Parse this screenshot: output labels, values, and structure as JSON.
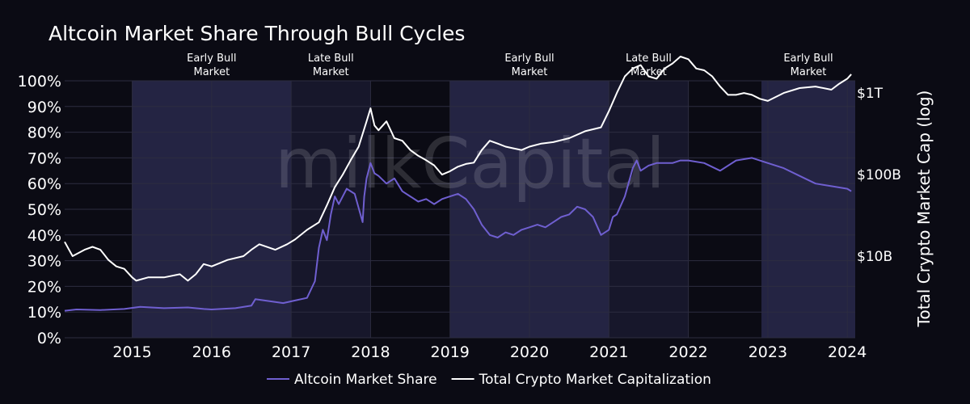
{
  "watermark": "milkCapital",
  "chart_data": {
    "type": "line",
    "title": "Altcoin Market Share Through Bull Cycles",
    "xlabel": "",
    "ylabel": "",
    "y2label": "Total Crypto Market Cap (log)",
    "xlim": [
      2014.15,
      2024.1
    ],
    "ylim": [
      0,
      100
    ],
    "y2lim_log10": [
      9.0,
      12.15
    ],
    "x_ticks": [
      2015,
      2016,
      2017,
      2018,
      2019,
      2020,
      2021,
      2022,
      2023,
      2024
    ],
    "x_tick_labels": [
      "2015",
      "2016",
      "2017",
      "2018",
      "2019",
      "2020",
      "2021",
      "2022",
      "2023",
      "2024"
    ],
    "y_ticks": [
      0,
      10,
      20,
      30,
      40,
      50,
      60,
      70,
      80,
      90,
      100
    ],
    "y_tick_labels": [
      "0%",
      "10%",
      "20%",
      "30%",
      "40%",
      "50%",
      "60%",
      "70%",
      "80%",
      "90%",
      "100%"
    ],
    "y2_ticks": [
      10000000000,
      100000000000,
      1000000000000
    ],
    "y2_tick_labels": [
      "$10B",
      "$100B",
      "$1T"
    ],
    "grid": true,
    "legend_position": "bottom-center",
    "phases": [
      {
        "start": 2015.0,
        "end": 2017.0,
        "label_lines": [
          "Early Bull",
          "Market"
        ],
        "color": "#5a5aa8",
        "opacity": 0.32
      },
      {
        "start": 2017.0,
        "end": 2018.0,
        "label_lines": [
          "Late Bull",
          "Market"
        ],
        "color": "#5a5aa8",
        "opacity": 0.16
      },
      {
        "start": 2019.0,
        "end": 2021.0,
        "label_lines": [
          "Early Bull",
          "Market"
        ],
        "color": "#5a5aa8",
        "opacity": 0.32
      },
      {
        "start": 2021.0,
        "end": 2022.0,
        "label_lines": [
          "Late Bull",
          "Market"
        ],
        "color": "#5a5aa8",
        "opacity": 0.16
      },
      {
        "start": 2022.92,
        "end": 2024.1,
        "label_lines": [
          "Early Bull",
          "Market"
        ],
        "color": "#5a5aa8",
        "opacity": 0.32
      }
    ],
    "series": [
      {
        "name": "Altcoin Market Share",
        "axis": "left",
        "color": "#6f5fd0",
        "x": [
          2014.1,
          2014.3,
          2014.6,
          2014.9,
          2015.1,
          2015.4,
          2015.7,
          2015.9,
          2016.0,
          2016.3,
          2016.5,
          2016.55,
          2016.9,
          2017.05,
          2017.2,
          2017.3,
          2017.35,
          2017.4,
          2017.45,
          2017.5,
          2017.55,
          2017.6,
          2017.7,
          2017.8,
          2017.9,
          2017.92,
          2017.95,
          2018.0,
          2018.05,
          2018.1,
          2018.2,
          2018.3,
          2018.4,
          2018.5,
          2018.6,
          2018.7,
          2018.8,
          2018.9,
          2019.0,
          2019.1,
          2019.2,
          2019.3,
          2019.4,
          2019.5,
          2019.6,
          2019.7,
          2019.8,
          2019.9,
          2020.0,
          2020.1,
          2020.2,
          2020.3,
          2020.4,
          2020.5,
          2020.6,
          2020.7,
          2020.8,
          2020.9,
          2021.0,
          2021.05,
          2021.1,
          2021.2,
          2021.3,
          2021.35,
          2021.4,
          2021.5,
          2021.6,
          2021.7,
          2021.8,
          2021.9,
          2022.0,
          2022.2,
          2022.4,
          2022.6,
          2022.8,
          2023.0,
          2023.2,
          2023.4,
          2023.6,
          2023.8,
          2024.0,
          2024.05
        ],
        "values": [
          10.5,
          11.0,
          10.8,
          11.2,
          12.0,
          11.5,
          11.8,
          11.2,
          11.0,
          11.5,
          12.5,
          15.0,
          13.5,
          14.5,
          15.5,
          22.0,
          35.0,
          42.0,
          38.0,
          48.0,
          55.0,
          52.0,
          58.0,
          56.0,
          45.0,
          55.0,
          62.0,
          68.0,
          64.0,
          63.0,
          60.0,
          62.0,
          57.0,
          55.0,
          53.0,
          54.0,
          52.0,
          54.0,
          55.0,
          56.0,
          54.0,
          50.0,
          44.0,
          40.0,
          39.0,
          41.0,
          40.0,
          42.0,
          43.0,
          44.0,
          43.0,
          45.0,
          47.0,
          48.0,
          51.0,
          50.0,
          47.0,
          40.0,
          42.0,
          47.0,
          48.0,
          55.0,
          66.0,
          69.0,
          65.0,
          67.0,
          68.0,
          68.0,
          68.0,
          69.0,
          69.0,
          68.0,
          65.0,
          69.0,
          70.0,
          68.0,
          66.0,
          63.0,
          60.0,
          59.0,
          58.0,
          57.0
        ]
      },
      {
        "name": "Total Crypto Market Capitalization",
        "axis": "right",
        "color": "#ffffff",
        "x": [
          2014.15,
          2014.25,
          2014.4,
          2014.5,
          2014.6,
          2014.7,
          2014.8,
          2014.9,
          2015.0,
          2015.05,
          2015.2,
          2015.4,
          2015.6,
          2015.7,
          2015.8,
          2015.9,
          2016.0,
          2016.2,
          2016.4,
          2016.5,
          2016.6,
          2016.8,
          2016.95,
          2017.05,
          2017.2,
          2017.35,
          2017.45,
          2017.55,
          2017.65,
          2017.75,
          2017.85,
          2017.95,
          2018.0,
          2018.05,
          2018.1,
          2018.2,
          2018.3,
          2018.4,
          2018.5,
          2018.6,
          2018.7,
          2018.8,
          2018.9,
          2019.0,
          2019.1,
          2019.2,
          2019.3,
          2019.4,
          2019.5,
          2019.6,
          2019.7,
          2019.8,
          2019.9,
          2020.0,
          2020.15,
          2020.3,
          2020.5,
          2020.7,
          2020.9,
          2021.0,
          2021.1,
          2021.2,
          2021.3,
          2021.4,
          2021.5,
          2021.6,
          2021.7,
          2021.8,
          2021.9,
          2022.0,
          2022.1,
          2022.2,
          2022.3,
          2022.4,
          2022.5,
          2022.6,
          2022.7,
          2022.8,
          2022.9,
          2023.0,
          2023.2,
          2023.4,
          2023.6,
          2023.8,
          2023.9,
          2024.0,
          2024.05
        ],
        "values": [
          15000000000.0,
          10000000000.0,
          12000000000.0,
          13000000000.0,
          12000000000.0,
          9000000000.0,
          7500000000.0,
          7000000000.0,
          5500000000.0,
          5000000000.0,
          5500000000.0,
          5500000000.0,
          6000000000.0,
          5000000000.0,
          6000000000.0,
          8000000000.0,
          7500000000.0,
          9000000000.0,
          10000000000.0,
          12000000000.0,
          14000000000.0,
          12000000000.0,
          14000000000.0,
          16000000000.0,
          21000000000.0,
          26000000000.0,
          42000000000.0,
          70000000000.0,
          100000000000.0,
          150000000000.0,
          220000000000.0,
          450000000000.0,
          650000000000.0,
          400000000000.0,
          350000000000.0,
          450000000000.0,
          280000000000.0,
          260000000000.0,
          200000000000.0,
          170000000000.0,
          150000000000.0,
          130000000000.0,
          100000000000.0,
          110000000000.0,
          125000000000.0,
          135000000000.0,
          140000000000.0,
          200000000000.0,
          260000000000.0,
          240000000000.0,
          220000000000.0,
          210000000000.0,
          200000000000.0,
          220000000000.0,
          240000000000.0,
          250000000000.0,
          280000000000.0,
          340000000000.0,
          380000000000.0,
          600000000000.0,
          1000000000000.0,
          1600000000000.0,
          2000000000000.0,
          2200000000000.0,
          1600000000000.0,
          1500000000000.0,
          2000000000000.0,
          2300000000000.0,
          2800000000000.0,
          2600000000000.0,
          2000000000000.0,
          1900000000000.0,
          1600000000000.0,
          1200000000000.0,
          950000000000.0,
          950000000000.0,
          1000000000000.0,
          950000000000.0,
          850000000000.0,
          800000000000.0,
          1000000000000.0,
          1150000000000.0,
          1200000000000.0,
          1100000000000.0,
          1300000000000.0,
          1500000000000.0,
          1700000000000.0
        ]
      }
    ]
  }
}
